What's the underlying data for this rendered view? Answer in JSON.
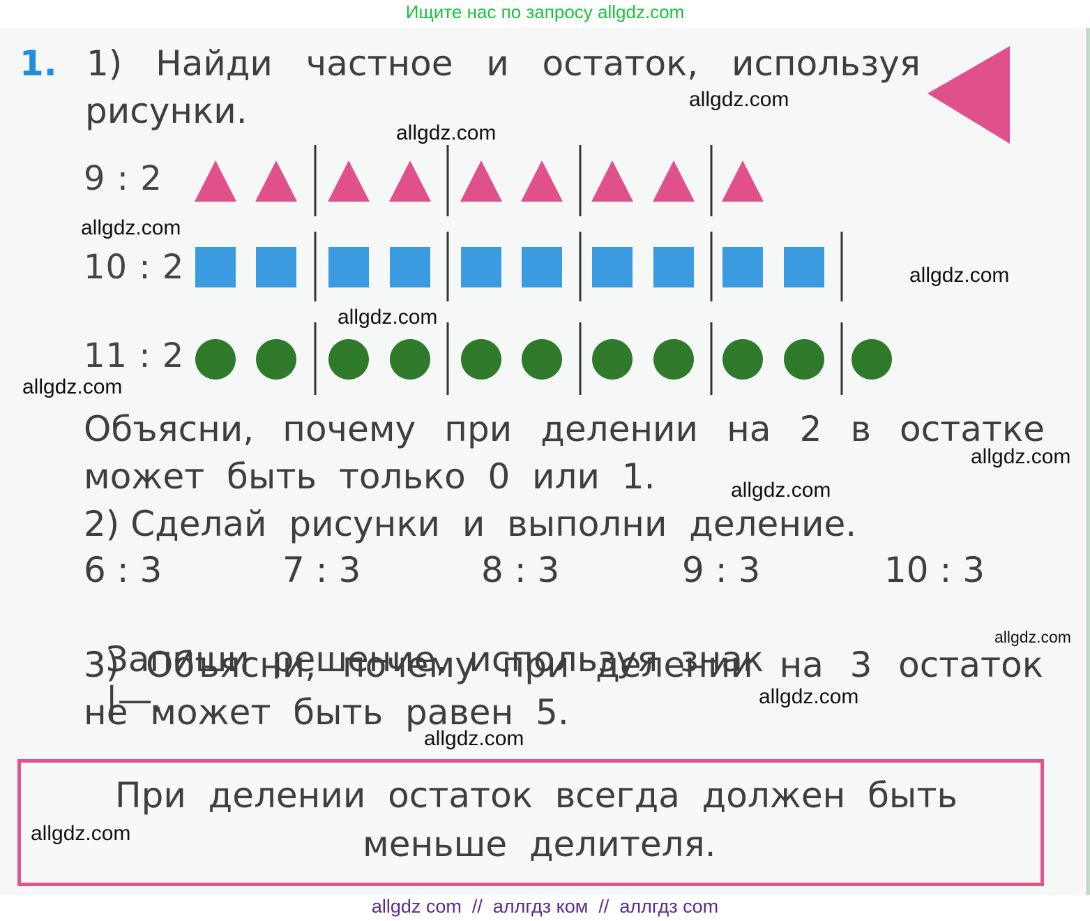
{
  "header_banner": "Ищите нас по запросу allgdz.com",
  "footer_banner": "allgdz com  //  аллгдз ком  //  аллгдз com",
  "task": {
    "number": "1.",
    "part1_line1": [
      "1)",
      "Найди",
      "частное",
      "и",
      "остаток,",
      "используя"
    ],
    "part1_line2": "рисунки.",
    "rows": [
      {
        "label": "9 : 2",
        "shape": "triangle",
        "count": 9,
        "color": "#e0508a"
      },
      {
        "label": "10 : 2",
        "shape": "square",
        "count": 10,
        "color": "#3b9be0"
      },
      {
        "label": "11 : 2",
        "shape": "circle",
        "count": 11,
        "color": "#2e7a2a"
      }
    ],
    "explain_line1": [
      "Объясни,",
      "почему",
      "при",
      "делении",
      "на",
      "2",
      "в",
      "остатке"
    ],
    "explain_line2": "может  быть  только  0  или  1.",
    "part2_line1": "2) Сделай  рисунки  и  выполни  деление.",
    "part2_examples": [
      "6 : 3",
      "7 : 3",
      "8 : 3",
      "9 : 3",
      "10 : 3"
    ],
    "part2_line3": "Запиши  решение,  используя  знак",
    "part2_sign": "|—.",
    "part3_line1": [
      "3)",
      "Объясни,",
      "почему",
      "при",
      "делении",
      "на",
      "3",
      "остаток"
    ],
    "part3_line2": "не  может  быть  равен  5."
  },
  "rule": {
    "line1": "При  делении  остаток  всегда  должен  быть",
    "line2": "меньше  делителя."
  },
  "watermarks": [
    "allgdz.com",
    "allgdz.com",
    "allgdz.com",
    "allgdz.com",
    "allgdz.com",
    "allgdz.com",
    "allgdz.com",
    "allgdz.com",
    "allgdz.com",
    "allgdz.com",
    "allgdz.com",
    "allgdz.com"
  ],
  "colors": {
    "triangle": "#e0508a",
    "square": "#3b9be0",
    "circle": "#2e7a2a",
    "task_number": "#1f8edb",
    "rule_border": "#e0538b"
  }
}
